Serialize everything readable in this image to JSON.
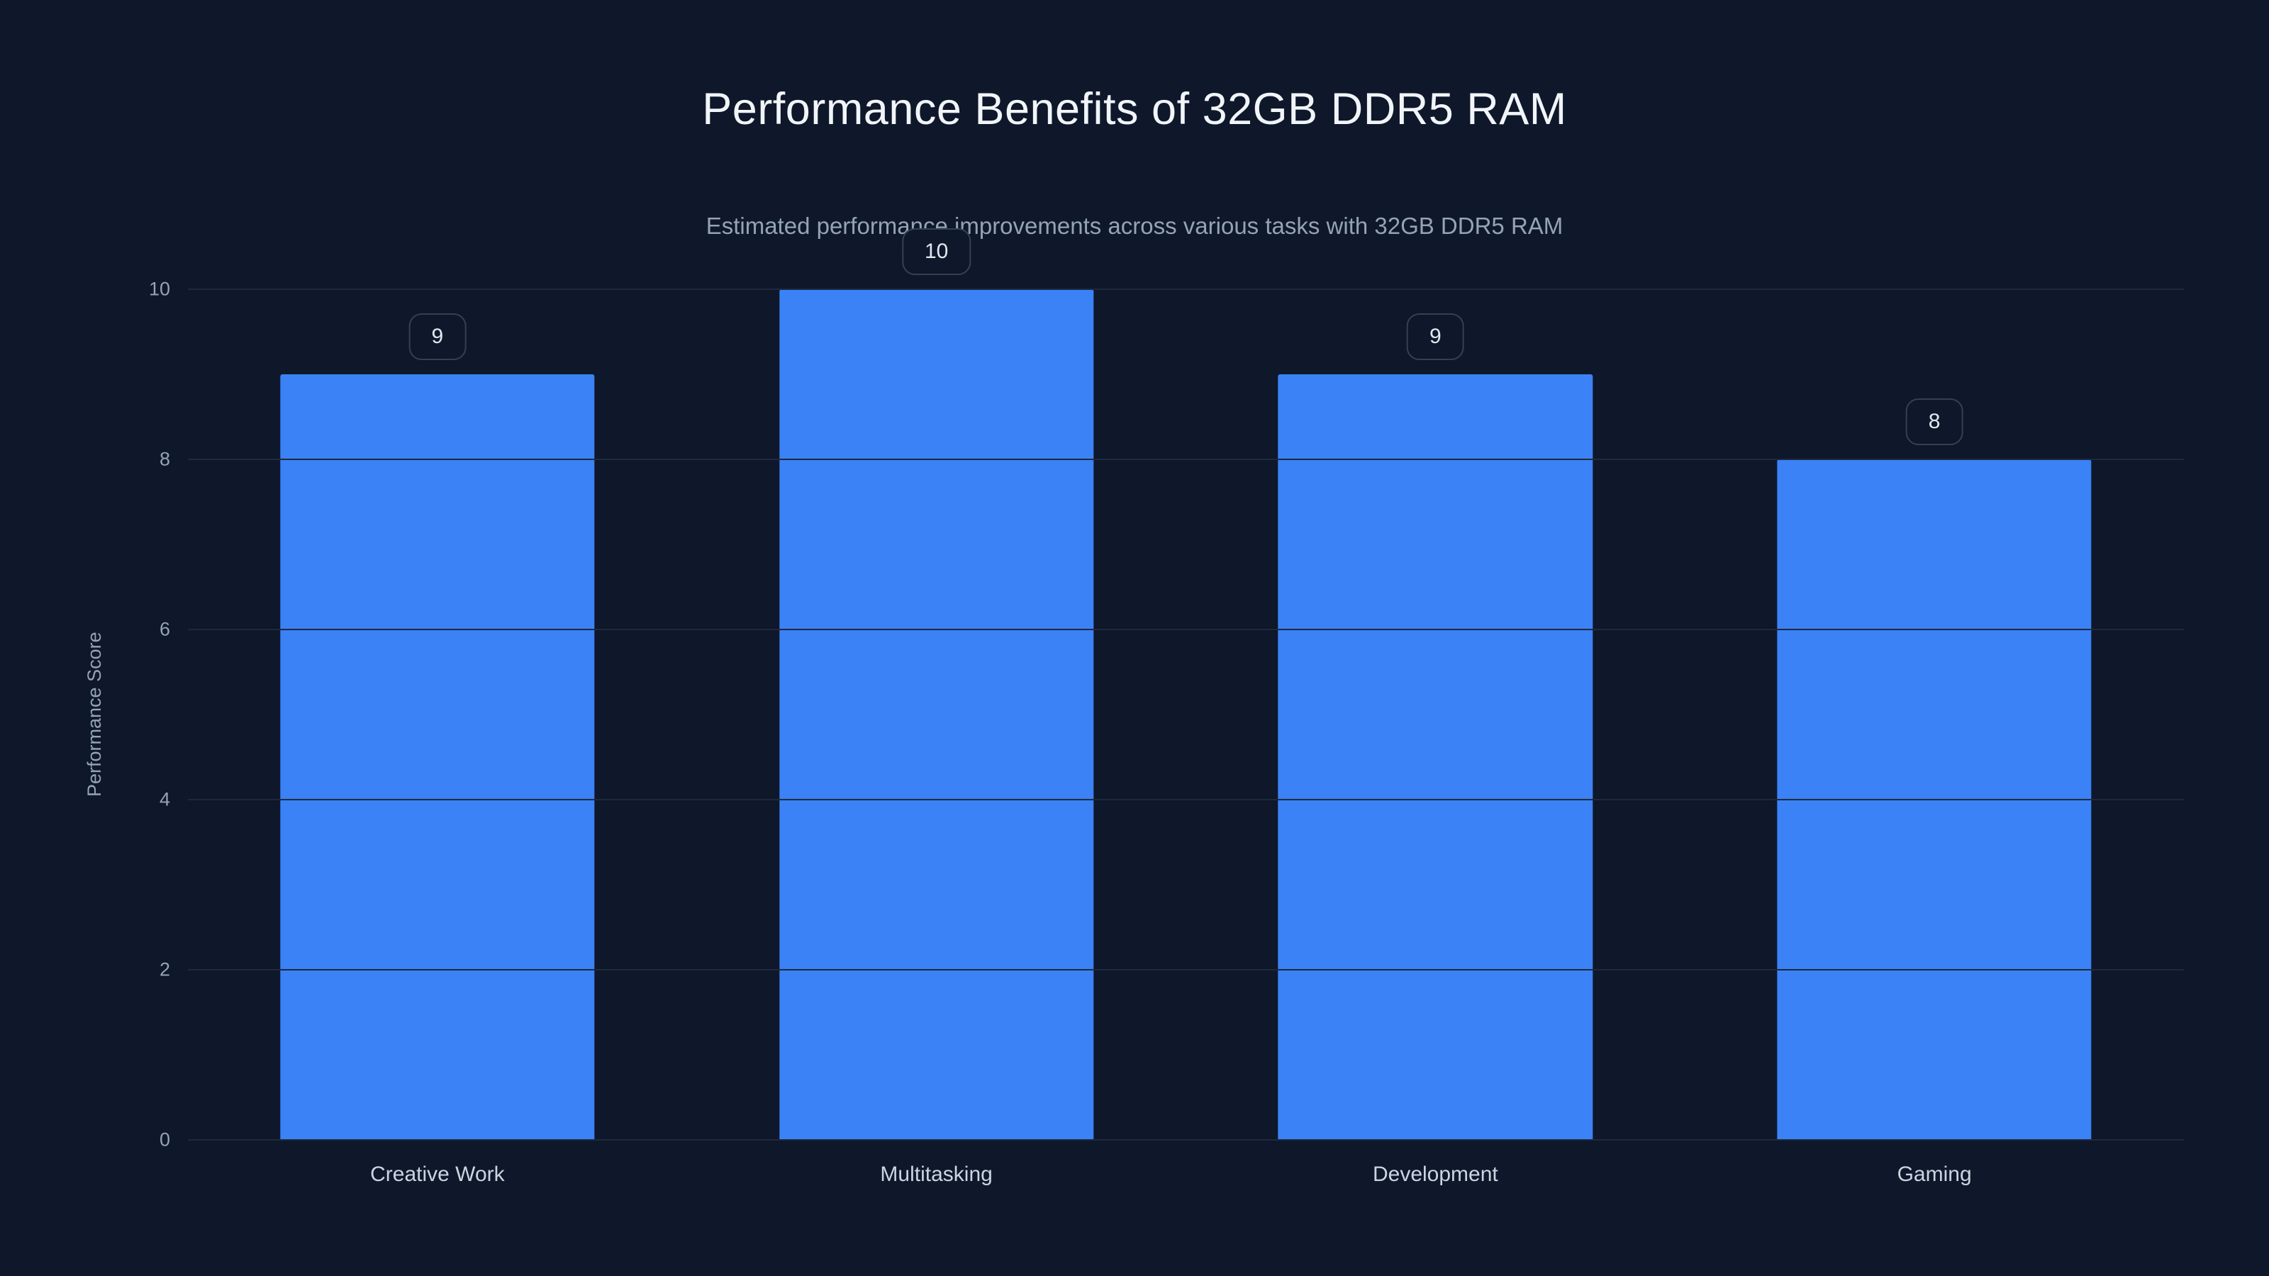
{
  "chart_data": {
    "type": "bar",
    "title": "Performance Benefits of 32GB DDR5 RAM",
    "subtitle": "Estimated performance improvements across various tasks with 32GB DDR5 RAM",
    "categories": [
      "Creative Work",
      "Multitasking",
      "Development",
      "Gaming"
    ],
    "values": [
      9,
      10,
      9,
      8
    ],
    "value_labels": [
      "9",
      "10",
      "9",
      "8"
    ],
    "xlabel": "",
    "ylabel": "Performance Score",
    "ylim": [
      0,
      10
    ],
    "yticks": [
      0,
      2,
      4,
      6,
      8,
      10
    ],
    "grid": "horizontal",
    "legend": "none",
    "colors": {
      "background": "#0f172a",
      "bar": "#3b82f6",
      "title_text": "#f1f5f9",
      "subtitle_text": "#94a3b8",
      "axis_text": "#94a3b8",
      "category_text": "#cbd5e1",
      "gridline": "#1e293b",
      "badge_bg": "#0f172a",
      "badge_border": "#334155",
      "badge_text": "#e2e8f0"
    }
  }
}
